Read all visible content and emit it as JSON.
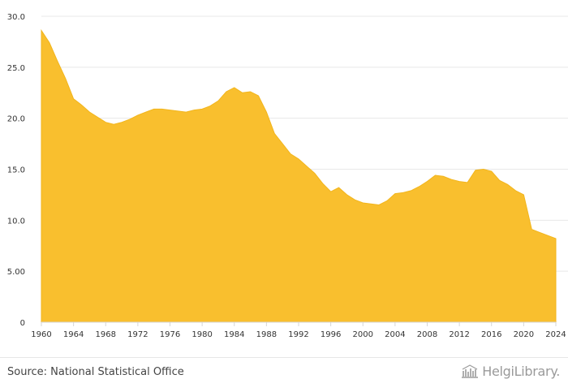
{
  "chart_data": {
    "type": "area",
    "title": "",
    "xlabel": "",
    "ylabel": "",
    "xlim": [
      1960,
      2024
    ],
    "ylim": [
      0,
      30
    ],
    "grid": true,
    "legend": "none",
    "color": "#f9bf2e",
    "x_ticks": [
      "1960",
      "1964",
      "1968",
      "1972",
      "1976",
      "1980",
      "1984",
      "1988",
      "1992",
      "1996",
      "2000",
      "2004",
      "2008",
      "2012",
      "2016",
      "2020",
      "2024"
    ],
    "y_ticks": [
      "0",
      "5.00",
      "10.0",
      "15.0",
      "20.0",
      "25.0",
      "30.0"
    ],
    "x": [
      1960,
      1961,
      1962,
      1963,
      1964,
      1965,
      1966,
      1967,
      1968,
      1969,
      1970,
      1971,
      1972,
      1973,
      1974,
      1975,
      1976,
      1977,
      1978,
      1979,
      1980,
      1981,
      1982,
      1983,
      1984,
      1985,
      1986,
      1987,
      1988,
      1989,
      1990,
      1991,
      1992,
      1993,
      1994,
      1995,
      1996,
      1997,
      1998,
      1999,
      2000,
      2001,
      2002,
      2003,
      2004,
      2005,
      2006,
      2007,
      2008,
      2009,
      2010,
      2011,
      2012,
      2013,
      2014,
      2015,
      2016,
      2017,
      2018,
      2019,
      2020,
      2021,
      2022,
      2023,
      2024
    ],
    "values": [
      28.6,
      27.4,
      25.6,
      23.9,
      21.9,
      21.3,
      20.6,
      20.1,
      19.6,
      19.4,
      19.6,
      19.9,
      20.3,
      20.6,
      20.9,
      20.9,
      20.8,
      20.7,
      20.6,
      20.8,
      20.9,
      21.2,
      21.7,
      22.6,
      23.0,
      22.5,
      22.6,
      22.2,
      20.6,
      18.5,
      17.5,
      16.5,
      16.0,
      15.3,
      14.6,
      13.6,
      12.8,
      13.2,
      12.5,
      12.0,
      11.7,
      11.6,
      11.5,
      11.9,
      12.6,
      12.7,
      12.9,
      13.3,
      13.8,
      14.4,
      14.3,
      14.0,
      13.8,
      13.7,
      14.9,
      15.0,
      14.8,
      13.9,
      13.5,
      12.9,
      12.5,
      9.1,
      8.8,
      8.5,
      8.2
    ]
  },
  "footer": {
    "source": "Source: National Statistical Office",
    "logo_text": "HelgiLibrary."
  }
}
